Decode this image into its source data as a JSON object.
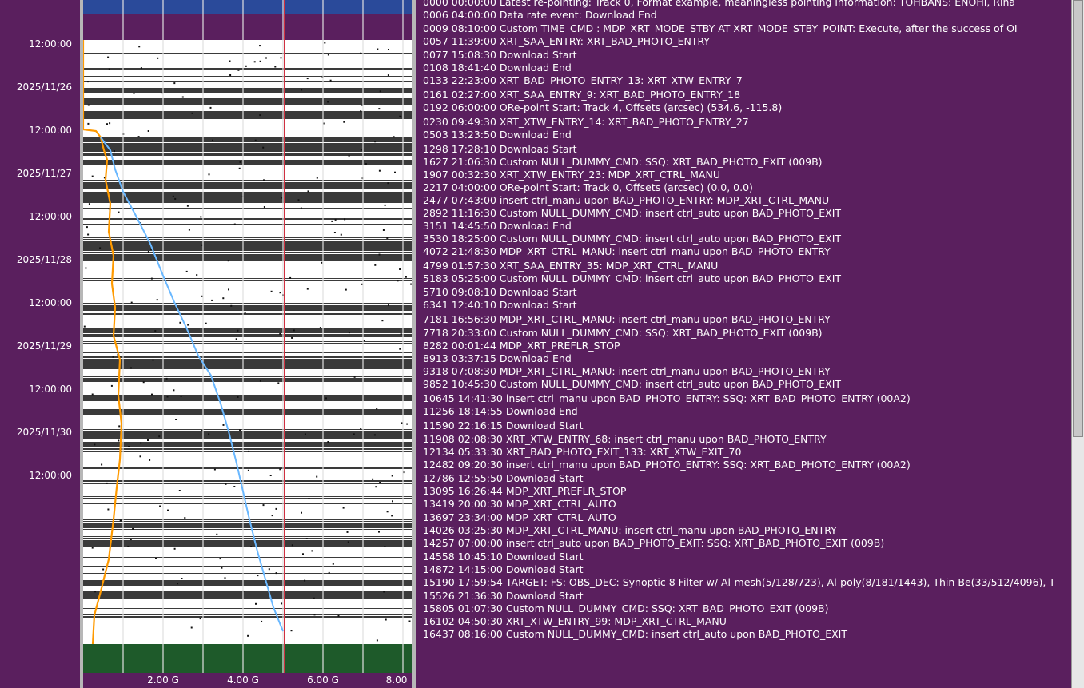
{
  "time_axis": {
    "labels": [
      {
        "text": "12:00:00",
        "row": 0
      },
      {
        "text": "2025/11/26",
        "row": 1
      },
      {
        "text": "12:00:00",
        "row": 2
      },
      {
        "text": "2025/11/27",
        "row": 3
      },
      {
        "text": "12:00:00",
        "row": 4
      },
      {
        "text": "2025/11/28",
        "row": 5
      },
      {
        "text": "12:00:00",
        "row": 6
      },
      {
        "text": "2025/11/29",
        "row": 7
      },
      {
        "text": "12:00:00",
        "row": 8
      },
      {
        "text": "2025/11/30",
        "row": 9
      },
      {
        "text": "12:00:00",
        "row": 10
      }
    ]
  },
  "gauge_axis": {
    "labels": [
      "2.00 G",
      "4.00 G",
      "6.00 G",
      "8.00"
    ]
  },
  "plot": {
    "colors": {
      "top_band": "#2a4a9a",
      "bottom_band": "#1e5a2a",
      "gridline": "#e0e0e0",
      "red_line": "#d03040",
      "orange_line": "#ff9a00",
      "blue_line": "#6ab8ff",
      "dark_stripe": "#3a3a3a",
      "light_stripe": "#ffffff"
    }
  },
  "log": {
    "lines": [
      "0000 00:00:00 Latest re-pointing: Track 0, Format example, meaningless pointing information: TOHBANS: ENOHI, Rina",
      "0006 04:00:00 Data rate event: Download End",
      "0009 08:10:00 Custom TIME_CMD : MDP_XRT_MODE_STBY AT XRT_MODE_STBY_POINT: Execute, after the success of OI",
      "0057 11:39:00 XRT_SAA_ENTRY: XRT_BAD_PHOTO_ENTRY",
      "0077 15:08:30 Download Start",
      "0108 18:41:40 Download End",
      "0133 22:23:00 XRT_BAD_PHOTO_ENTRY_13: XRT_XTW_ENTRY_7",
      "0161 02:27:00 XRT_SAA_ENTRY_9: XRT_BAD_PHOTO_ENTRY_18",
      "0192 06:00:00 ORe-point Start: Track 4, Offsets (arcsec) (534.6, -115.8)",
      "0230 09:49:30 XRT_XTW_ENTRY_14: XRT_BAD_PHOTO_ENTRY_27",
      "0503 13:23:50 Download End",
      "1298 17:28:10 Download Start",
      "1627 21:06:30 Custom NULL_DUMMY_CMD: SSQ: XRT_BAD_PHOTO_EXIT (009B)",
      "1907 00:32:30 XRT_XTW_ENTRY_23: MDP_XRT_CTRL_MANU",
      "2217 04:00:00 ORe-point Start: Track 0, Offsets (arcsec) (0.0, 0.0)",
      "2477 07:43:00 insert ctrl_manu upon BAD_PHOTO_ENTRY: MDP_XRT_CTRL_MANU",
      "2892 11:16:30 Custom NULL_DUMMY_CMD: insert ctrl_auto upon BAD_PHOTO_EXIT",
      "3151 14:45:50 Download End",
      "3530 18:25:00 Custom NULL_DUMMY_CMD: insert ctrl_auto upon BAD_PHOTO_EXIT",
      "4072 21:48:30 MDP_XRT_CTRL_MANU: insert ctrl_manu upon BAD_PHOTO_ENTRY",
      "4799 01:57:30 XRT_SAA_ENTRY_35: MDP_XRT_CTRL_MANU",
      "5183 05:25:00 Custom NULL_DUMMY_CMD: insert ctrl_auto upon BAD_PHOTO_EXIT",
      "5710 09:08:10 Download Start",
      "6341 12:40:10 Download Start",
      "7181 16:56:30 MDP_XRT_CTRL_MANU: insert ctrl_manu upon BAD_PHOTO_ENTRY",
      "7718 20:33:00 Custom NULL_DUMMY_CMD: SSQ: XRT_BAD_PHOTO_EXIT (009B)",
      "8282 00:01:44 MDP_XRT_PREFLR_STOP",
      "8913 03:37:15 Download End",
      "9318 07:08:30 MDP_XRT_CTRL_MANU: insert ctrl_manu upon BAD_PHOTO_ENTRY",
      "9852 10:45:30 Custom NULL_DUMMY_CMD: insert ctrl_auto upon BAD_PHOTO_EXIT",
      "10645 14:41:30 insert ctrl_manu upon BAD_PHOTO_ENTRY: SSQ: XRT_BAD_PHOTO_ENTRY (00A2)",
      "11256 18:14:55 Download End",
      "11590 22:16:15 Download Start",
      "11908 02:08:30 XRT_XTW_ENTRY_68: insert ctrl_manu upon BAD_PHOTO_ENTRY",
      "12134 05:33:30 XRT_BAD_PHOTO_EXIT_133: XRT_XTW_EXIT_70",
      "12482 09:20:30 insert ctrl_manu upon BAD_PHOTO_ENTRY: SSQ: XRT_BAD_PHOTO_ENTRY (00A2)",
      "12786 12:55:50 Download Start",
      "13095 16:26:44 MDP_XRT_PREFLR_STOP",
      "13419 20:00:30 MDP_XRT_CTRL_AUTO",
      "13697 23:34:00 MDP_XRT_CTRL_AUTO",
      "14026 03:25:30 MDP_XRT_CTRL_MANU: insert ctrl_manu upon BAD_PHOTO_ENTRY",
      "14257 07:00:00 insert ctrl_auto upon BAD_PHOTO_EXIT: SSQ: XRT_BAD_PHOTO_EXIT (009B)",
      "14558 10:45:10 Download Start",
      "14872 14:15:00 Download Start",
      "15190 17:59:54 TARGET: FS: OBS_DEC: Synoptic 8 Filter w/ Al-mesh(5/128/723), Al-poly(8/181/1443), Thin-Be(33/512/4096), T",
      "15526 21:36:30 Download Start",
      "15805 01:07:30 Custom NULL_DUMMY_CMD: SSQ: XRT_BAD_PHOTO_EXIT (009B)",
      "16102 04:50:30 XRT_XTW_ENTRY_99: MDP_XRT_CTRL_MANU",
      "16437 08:16:00 Custom NULL_DUMMY_CMD: insert ctrl_auto upon BAD_PHOTO_EXIT"
    ]
  }
}
